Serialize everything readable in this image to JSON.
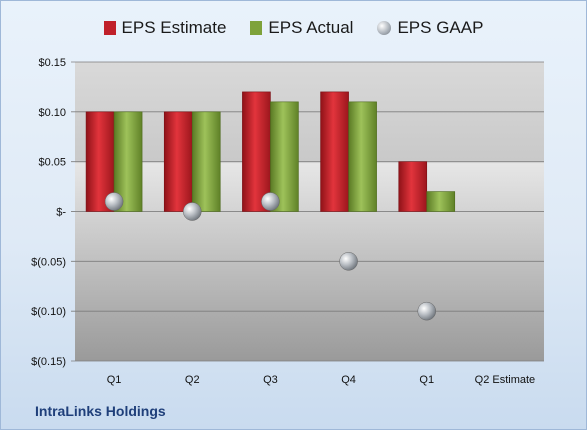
{
  "company_name": "IntraLinks Holdings",
  "chart_data": {
    "type": "bar",
    "categories": [
      "Q1",
      "Q2",
      "Q3",
      "Q4",
      "Q1",
      "Q2 Estimate"
    ],
    "series": [
      {
        "name": "EPS Estimate",
        "kind": "bar",
        "color": "#c0202a",
        "values": [
          0.1,
          0.1,
          0.12,
          0.12,
          0.05,
          null
        ]
      },
      {
        "name": "EPS Actual",
        "kind": "bar",
        "color": "#7ea23a",
        "values": [
          0.1,
          0.1,
          0.11,
          0.11,
          0.02,
          null
        ]
      },
      {
        "name": "EPS GAAP",
        "kind": "point",
        "color": "#a6adb5",
        "values": [
          0.01,
          0.0,
          0.01,
          -0.05,
          -0.1,
          null
        ]
      }
    ],
    "ylim": [
      -0.15,
      0.15
    ],
    "y_ticks": [
      0.15,
      0.1,
      0.05,
      0,
      -0.05,
      -0.1,
      -0.15
    ],
    "y_tick_labels": [
      "$0.15",
      "$0.10",
      "$0.05",
      "$-",
      "$(0.05)",
      "$(0.10)",
      "$(0.15)"
    ],
    "grid": true,
    "legend_position": "top"
  }
}
